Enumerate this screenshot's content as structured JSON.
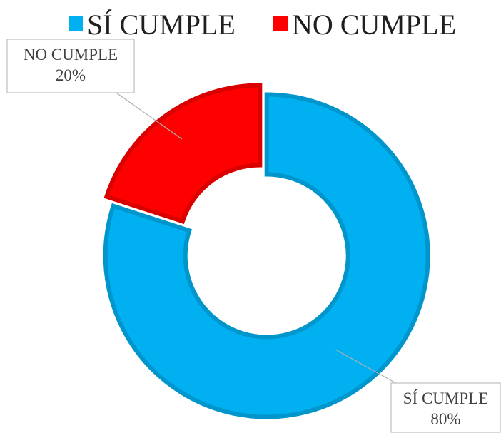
{
  "chart_data": {
    "type": "donut",
    "categories": [
      "SÍ CUMPLE",
      "NO CUMPLE"
    ],
    "values": [
      80,
      20
    ],
    "value_labels": [
      "80%",
      "20%"
    ],
    "colors": [
      "#00b0f0",
      "#ff0000"
    ],
    "legend": "top"
  }
}
